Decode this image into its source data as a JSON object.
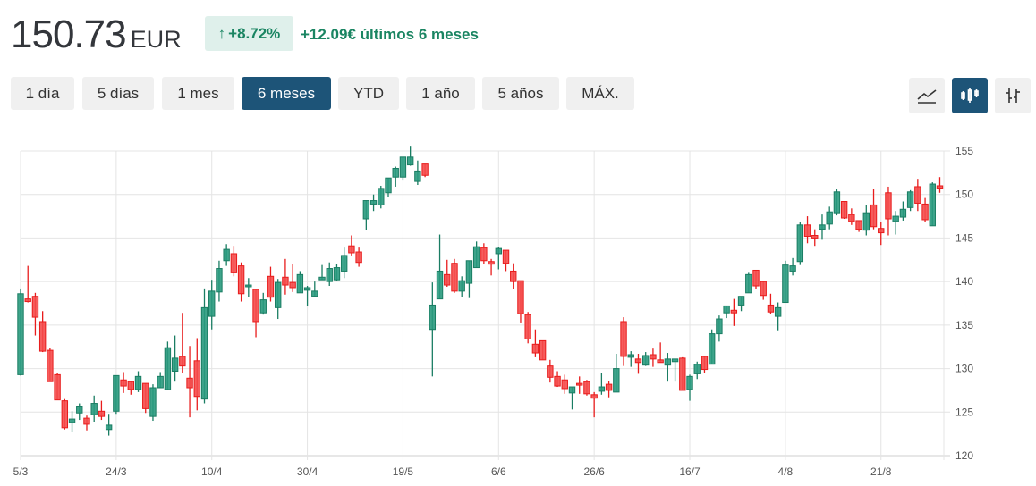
{
  "header": {
    "price": "150.73",
    "currency": "EUR",
    "change_percent": "+8.72%",
    "change_arrow_icon": "arrow-up-icon",
    "change_text": "+12.09€ últimos 6 meses"
  },
  "ranges": [
    {
      "label": "1 día",
      "active": false
    },
    {
      "label": "5 días",
      "active": false
    },
    {
      "label": "1 mes",
      "active": false
    },
    {
      "label": "6 meses",
      "active": true
    },
    {
      "label": "YTD",
      "active": false
    },
    {
      "label": "1 año",
      "active": false
    },
    {
      "label": "5 años",
      "active": false
    },
    {
      "label": "MÁX.",
      "active": false
    }
  ],
  "chart_types": [
    {
      "icon": "line-chart-icon",
      "active": false
    },
    {
      "icon": "candlestick-chart-icon",
      "active": true
    },
    {
      "icon": "ohlc-bar-chart-icon",
      "active": false
    }
  ],
  "colors": {
    "up": "#2a9a7e",
    "up_border": "#1a7d63",
    "down": "#f54b4b",
    "down_border": "#e81c1c",
    "accent": "#1d5478",
    "positive_text": "#1a8562"
  },
  "chart_data": {
    "type": "candlestick",
    "ylim": [
      120,
      155
    ],
    "yticks": [
      120,
      125,
      130,
      135,
      140,
      145,
      150,
      155
    ],
    "grid": true,
    "xticks": [
      {
        "label": "5/3",
        "index": 0
      },
      {
        "label": "24/3",
        "index": 13
      },
      {
        "label": "10/4",
        "index": 26
      },
      {
        "label": "30/4",
        "index": 39
      },
      {
        "label": "19/5",
        "index": 52
      },
      {
        "label": "6/6",
        "index": 65
      },
      {
        "label": "26/6",
        "index": 78
      },
      {
        "label": "16/7",
        "index": 91
      },
      {
        "label": "4/8",
        "index": 104
      },
      {
        "label": "21/8",
        "index": 117
      }
    ],
    "ohlc": [
      [
        129.3,
        139.2,
        129.2,
        138.6
      ],
      [
        138.0,
        141.8,
        137.6,
        137.7
      ],
      [
        138.3,
        138.7,
        133.8,
        135.9
      ],
      [
        135.4,
        136.6,
        131.9,
        132.0
      ],
      [
        132.1,
        132.4,
        128.5,
        128.5
      ],
      [
        129.3,
        129.5,
        126.4,
        126.4
      ],
      [
        126.3,
        126.5,
        123.0,
        123.2
      ],
      [
        123.8,
        125.1,
        122.7,
        124.2
      ],
      [
        124.9,
        126.0,
        124.1,
        125.6
      ],
      [
        124.3,
        124.6,
        122.9,
        123.6
      ],
      [
        124.7,
        126.9,
        123.9,
        126.0
      ],
      [
        125.1,
        126.3,
        124.1,
        124.5
      ],
      [
        123.0,
        124.8,
        122.3,
        123.5
      ],
      [
        125.1,
        129.2,
        124.8,
        129.2
      ],
      [
        128.7,
        129.6,
        127.2,
        128.0
      ],
      [
        128.5,
        128.6,
        127.0,
        127.6
      ],
      [
        127.6,
        129.7,
        127.3,
        129.1
      ],
      [
        128.3,
        128.3,
        124.9,
        125.4
      ],
      [
        124.5,
        128.2,
        124.0,
        127.8
      ],
      [
        127.8,
        129.6,
        127.8,
        129.1
      ],
      [
        127.6,
        133.1,
        127.6,
        132.4
      ],
      [
        129.7,
        133.8,
        128.5,
        131.2
      ],
      [
        131.4,
        136.4,
        129.5,
        130.3
      ],
      [
        128.9,
        132.6,
        124.4,
        127.8
      ],
      [
        130.9,
        133.5,
        125.2,
        126.8
      ],
      [
        126.5,
        139.2,
        126.0,
        137.0
      ],
      [
        136.0,
        140.2,
        134.5,
        138.9
      ],
      [
        138.8,
        142.4,
        137.7,
        141.5
      ],
      [
        142.4,
        144.3,
        141.8,
        143.7
      ],
      [
        143.2,
        144.1,
        140.6,
        141.0
      ],
      [
        141.8,
        142.2,
        137.7,
        138.6
      ],
      [
        139.4,
        140.4,
        138.2,
        139.6
      ],
      [
        139.1,
        139.1,
        133.6,
        135.4
      ],
      [
        136.4,
        138.7,
        136.2,
        137.9
      ],
      [
        140.6,
        141.7,
        137.7,
        138.2
      ],
      [
        137.0,
        140.3,
        135.7,
        139.9
      ],
      [
        140.5,
        142.6,
        138.5,
        139.6
      ],
      [
        139.9,
        142.0,
        138.8,
        139.3
      ],
      [
        138.7,
        141.2,
        138.7,
        140.8
      ],
      [
        139.0,
        139.5,
        137.2,
        139.3
      ],
      [
        138.3,
        140.0,
        138.3,
        138.9
      ],
      [
        140.2,
        141.9,
        140.2,
        140.5
      ],
      [
        140.0,
        142.2,
        139.5,
        141.5
      ],
      [
        140.2,
        142.0,
        140.1,
        141.6
      ],
      [
        141.2,
        143.9,
        140.4,
        143.0
      ],
      [
        144.1,
        145.3,
        143.0,
        143.3
      ],
      [
        143.4,
        143.9,
        141.7,
        142.2
      ],
      [
        147.2,
        149.3,
        145.9,
        149.3
      ],
      [
        148.9,
        150.0,
        148.1,
        149.3
      ],
      [
        148.8,
        151.0,
        148.4,
        150.7
      ],
      [
        150.2,
        151.9,
        149.7,
        151.9
      ],
      [
        152.0,
        153.2,
        150.9,
        153.0
      ],
      [
        152.0,
        154.3,
        151.6,
        154.3
      ],
      [
        153.4,
        155.6,
        153.3,
        154.3
      ],
      [
        151.5,
        153.9,
        151.1,
        152.7
      ],
      [
        153.5,
        153.5,
        152.0,
        152.2
      ],
      [
        134.5,
        139.9,
        129.1,
        137.3
      ],
      [
        138.0,
        145.4,
        138.0,
        141.2
      ],
      [
        140.8,
        142.5,
        139.4,
        139.6
      ],
      [
        142.1,
        142.6,
        138.7,
        138.9
      ],
      [
        138.9,
        140.6,
        138.2,
        140.1
      ],
      [
        139.8,
        142.4,
        138.1,
        142.4
      ],
      [
        141.6,
        144.6,
        141.6,
        144.0
      ],
      [
        143.9,
        144.4,
        142.0,
        142.4
      ],
      [
        142.3,
        142.6,
        140.7,
        142.0
      ],
      [
        143.2,
        144.0,
        141.4,
        143.8
      ],
      [
        143.6,
        143.6,
        141.2,
        142.1
      ],
      [
        141.2,
        142.1,
        139.1,
        140.0
      ],
      [
        140.1,
        140.1,
        135.3,
        136.3
      ],
      [
        136.2,
        136.5,
        132.9,
        133.4
      ],
      [
        132.8,
        134.5,
        131.3,
        131.8
      ],
      [
        133.2,
        133.2,
        131.0,
        131.0
      ],
      [
        130.3,
        131.0,
        128.4,
        129.0
      ],
      [
        129.1,
        129.7,
        127.9,
        128.0
      ],
      [
        128.7,
        129.3,
        127.1,
        127.7
      ],
      [
        127.2,
        127.9,
        125.3,
        127.9
      ],
      [
        128.3,
        129.1,
        127.1,
        128.1
      ],
      [
        128.5,
        128.7,
        126.9,
        127.1
      ],
      [
        127.0,
        127.3,
        124.4,
        126.6
      ],
      [
        127.4,
        129.5,
        127.0,
        127.9
      ],
      [
        128.2,
        128.6,
        126.7,
        127.5
      ],
      [
        127.3,
        131.7,
        127.3,
        130.0
      ],
      [
        135.4,
        135.9,
        130.3,
        131.4
      ],
      [
        131.3,
        132.0,
        130.2,
        131.6
      ],
      [
        131.1,
        131.7,
        129.4,
        130.7
      ],
      [
        130.4,
        131.9,
        130.3,
        131.5
      ],
      [
        131.6,
        132.3,
        130.2,
        131.1
      ],
      [
        131.0,
        133.0,
        130.7,
        130.7
      ],
      [
        130.4,
        131.8,
        128.5,
        131.1
      ],
      [
        130.8,
        131.1,
        128.5,
        131.1
      ],
      [
        131.2,
        131.3,
        127.5,
        127.5
      ],
      [
        127.6,
        129.3,
        126.3,
        129.1
      ],
      [
        129.4,
        130.8,
        128.8,
        130.5
      ],
      [
        131.4,
        131.4,
        129.5,
        129.9
      ],
      [
        130.5,
        134.5,
        130.5,
        134.0
      ],
      [
        134.0,
        136.1,
        133.1,
        135.7
      ],
      [
        136.4,
        137.2,
        135.8,
        137.2
      ],
      [
        136.7,
        138.0,
        134.9,
        136.4
      ],
      [
        137.3,
        138.3,
        136.6,
        138.3
      ],
      [
        138.7,
        141.0,
        138.7,
        140.8
      ],
      [
        141.3,
        141.3,
        139.1,
        139.5
      ],
      [
        140.0,
        140.0,
        137.9,
        138.4
      ],
      [
        137.3,
        138.6,
        136.3,
        136.5
      ],
      [
        136.0,
        137.6,
        134.4,
        137.0
      ],
      [
        137.6,
        142.4,
        137.6,
        141.9
      ],
      [
        141.2,
        142.7,
        140.7,
        141.8
      ],
      [
        142.3,
        146.8,
        141.9,
        146.5
      ],
      [
        146.5,
        147.5,
        144.4,
        145.2
      ],
      [
        145.3,
        146.0,
        144.1,
        145.0
      ],
      [
        146.0,
        147.7,
        144.8,
        146.5
      ],
      [
        146.6,
        148.6,
        146.0,
        148.0
      ],
      [
        147.9,
        150.6,
        147.6,
        150.3
      ],
      [
        149.2,
        149.2,
        147.2,
        147.3
      ],
      [
        147.7,
        148.4,
        146.5,
        146.9
      ],
      [
        147.0,
        147.0,
        145.7,
        146.0
      ],
      [
        145.9,
        148.8,
        145.3,
        147.9
      ],
      [
        148.8,
        150.6,
        146.0,
        146.3
      ],
      [
        146.1,
        146.8,
        144.2,
        145.6
      ],
      [
        150.2,
        150.9,
        145.3,
        147.2
      ],
      [
        146.9,
        148.1,
        145.4,
        147.5
      ],
      [
        147.4,
        149.2,
        147.0,
        148.3
      ],
      [
        148.5,
        150.5,
        148.1,
        150.3
      ],
      [
        150.9,
        151.8,
        148.1,
        149.0
      ],
      [
        148.9,
        149.6,
        146.8,
        147.1
      ],
      [
        146.4,
        151.4,
        146.4,
        151.2
      ],
      [
        151.0,
        152.0,
        150.2,
        150.73
      ]
    ]
  }
}
